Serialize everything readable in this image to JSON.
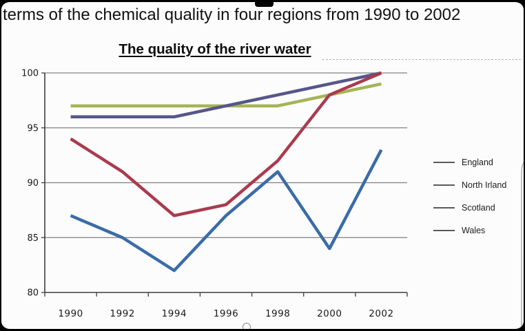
{
  "frame": {
    "top_text": "terms of the chemical quality in four regions from 1990 to 2002"
  },
  "chart_data": {
    "type": "line",
    "title": "The quality of the river water",
    "categories": [
      "1990",
      "1992",
      "1994",
      "1996",
      "1998",
      "2000",
      "2002"
    ],
    "series": [
      {
        "name": "England",
        "color": "#3a6ca8",
        "values": [
          87,
          85,
          82,
          87,
          91,
          84,
          93
        ]
      },
      {
        "name": "North Irland",
        "color": "#aa3b4e",
        "values": [
          94,
          91,
          87,
          88,
          92,
          98,
          100
        ]
      },
      {
        "name": "Scotland",
        "color": "#a5b456",
        "values": [
          97,
          97,
          97,
          97,
          97,
          98,
          99
        ]
      },
      {
        "name": "Wales",
        "color": "#56568a",
        "values": [
          96,
          96,
          96,
          97,
          98,
          99,
          100
        ]
      }
    ],
    "xlabel": "",
    "ylabel": "",
    "ylim": [
      80,
      100
    ],
    "yticks": [
      80,
      85,
      90,
      95,
      100
    ],
    "grid": true,
    "legend_position": "right",
    "legend_sample_color": "#5a5a5a",
    "grid_color": "#7f7f7f",
    "axis_color": "#3d3d3d",
    "tick_label_color": "#181818"
  }
}
